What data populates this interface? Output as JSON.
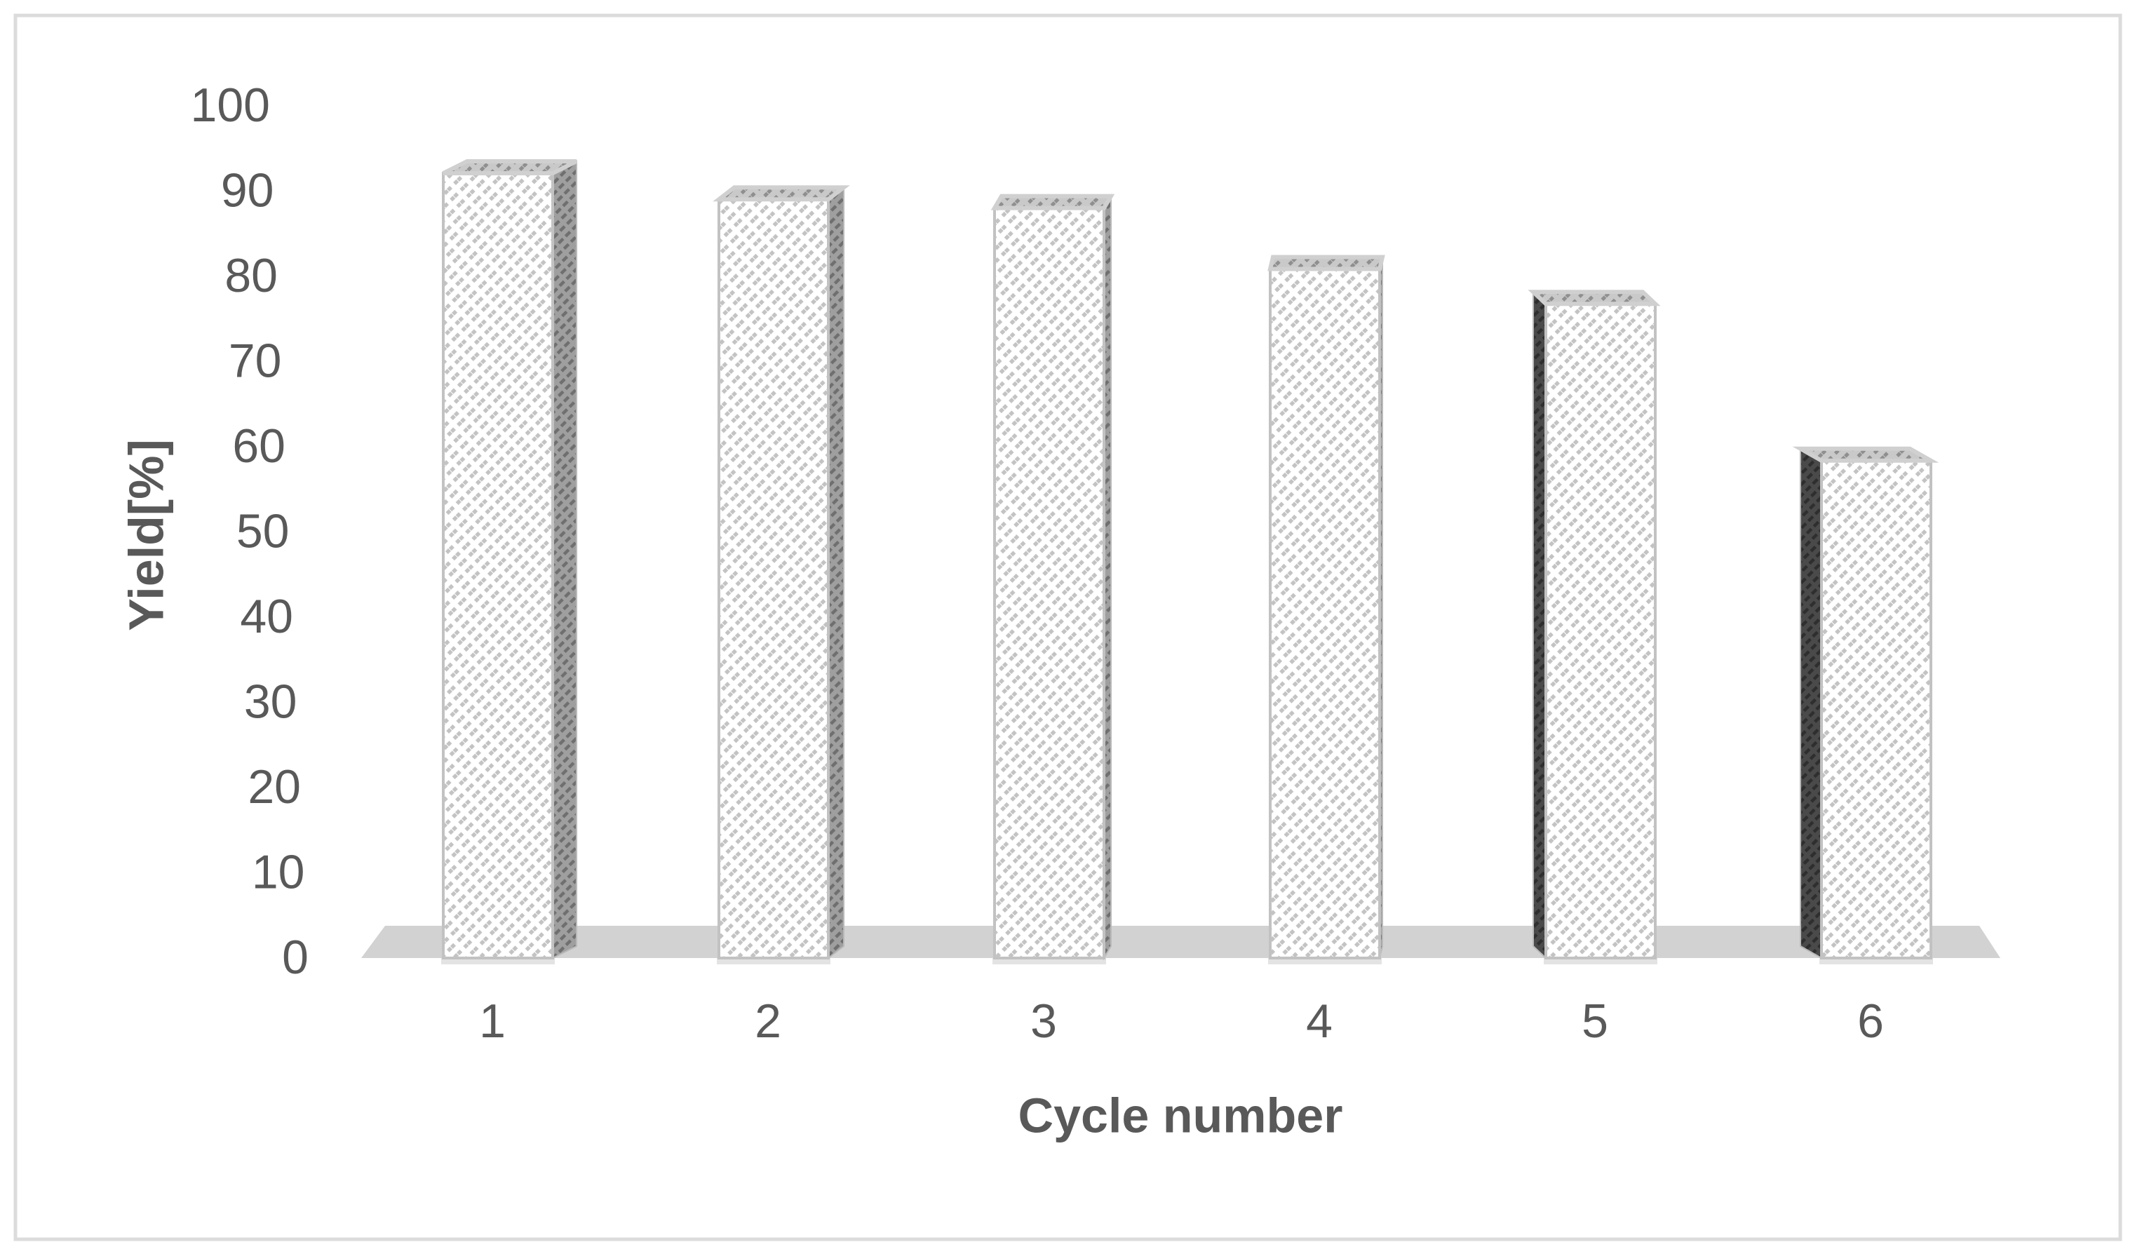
{
  "chart_data": {
    "type": "bar",
    "style": "3d-column-white-diagonal-hatch",
    "title": "",
    "xlabel": "Cycle number",
    "ylabel": "Yield[%]",
    "categories": [
      "1",
      "2",
      "3",
      "4",
      "5",
      "6"
    ],
    "series": [
      {
        "name": "Yield",
        "values": [
          93,
          90,
          89,
          82,
          78,
          60
        ]
      }
    ],
    "values": [
      93,
      90,
      89,
      82,
      78,
      60
    ],
    "ylim": [
      0,
      100
    ],
    "ytick_step": 10,
    "yticks": [
      "0",
      "10",
      "20",
      "30",
      "40",
      "50",
      "60",
      "70",
      "80",
      "90",
      "100"
    ],
    "grid": false,
    "legend_position": "none"
  },
  "colors": {
    "background": "#ffffff",
    "frame_border": "#dcdcdc",
    "text": "#595959",
    "bar_front_fill": "#ffffff",
    "bar_front_hatch": "#c3c3c3",
    "bar_front_border": "#c2c2c2",
    "bar_top_fill": "#c9c9c9",
    "bar_top_hatch": "#8f8f8f",
    "bar_top_border": "#d0d0d0",
    "bar_side_right_fill": "#9f9f9f",
    "bar_side_right_hatch": "#6f6f6f",
    "bar_side_left_fill": "#4a4a4a",
    "bar_side_left_hatch": "#2e2e2e",
    "bar_side_border": "#b9b9b9",
    "floor_fill": "#d2d2d2",
    "bar_shadow": "#e0e0e0"
  },
  "icons": []
}
